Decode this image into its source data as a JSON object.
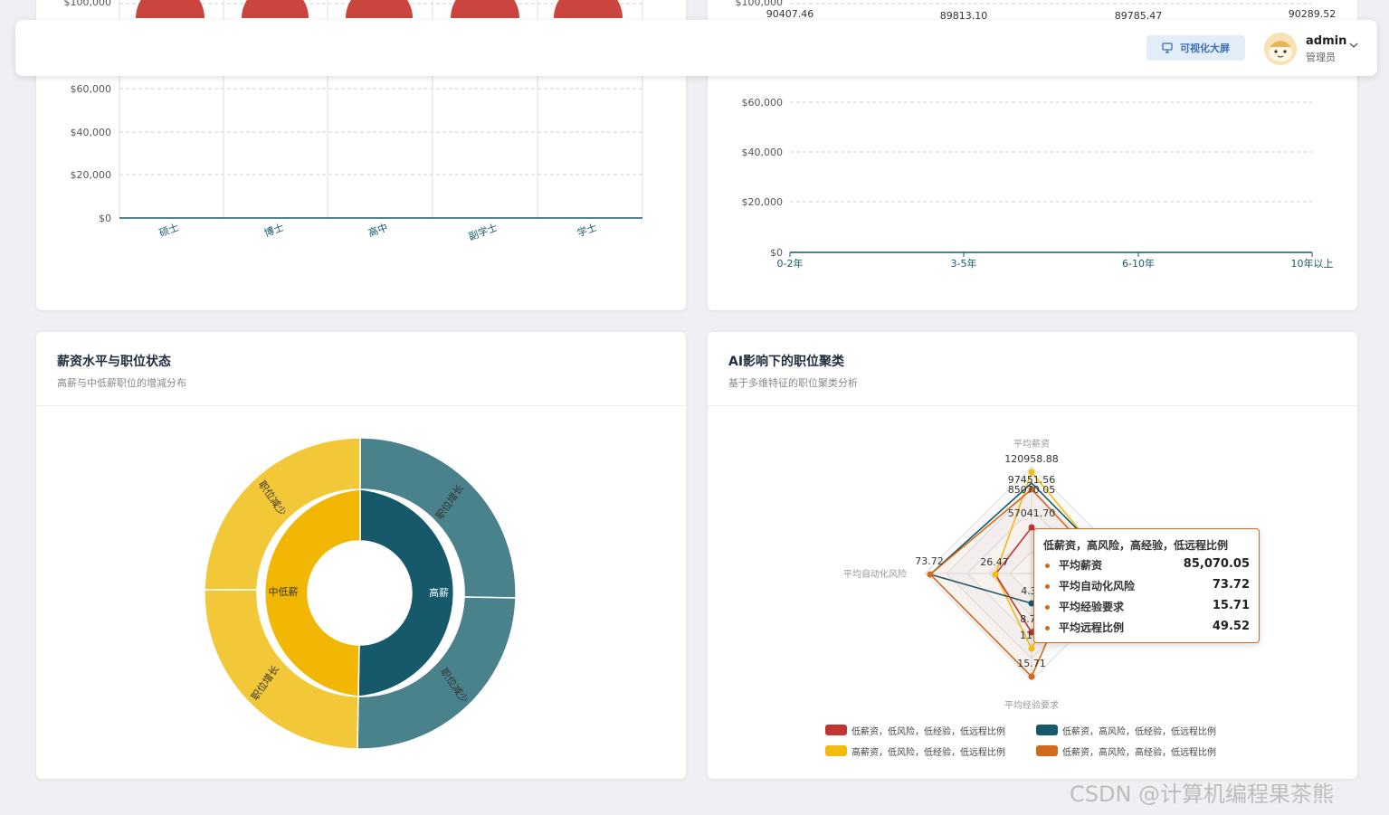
{
  "header": {
    "visual_button_label": "可视化大屏",
    "user_name": "admin",
    "user_role": "管理员"
  },
  "education_chart": {
    "y_ticks": [
      "$0",
      "$20,000",
      "$40,000",
      "$60,000",
      "$100,000"
    ],
    "categories": [
      "硕士",
      "博士",
      "高中",
      "副学士",
      "学士"
    ]
  },
  "experience_chart": {
    "y_ticks": [
      "$0",
      "$20,000",
      "$40,000",
      "$60,000",
      "$100,000"
    ],
    "categories": [
      "0-2年",
      "3-5年",
      "6-10年",
      "10年以上"
    ],
    "value_labels": [
      "90407.46",
      "89813.10",
      "89785.47",
      "90289.52"
    ]
  },
  "salary_panel": {
    "title": "薪资水平与职位状态",
    "subtitle": "高薪与中低薪职位的增减分布",
    "inner": [
      "中低薪",
      "高薪"
    ],
    "outer": [
      "职位减少",
      "职位增长",
      "职位增长",
      "职位减少"
    ]
  },
  "cluster_panel": {
    "title": "AI影响下的职位聚类",
    "subtitle": "基于多维特征的职位聚类分析",
    "axes": [
      "平均薪资",
      "平均自动化风险",
      "平均经验要求"
    ],
    "labels": [
      "120958.88",
      "97451.56",
      "85070.05",
      "57041.70",
      "73.72",
      "26.47",
      "4.3",
      "8.7",
      "11",
      "15.71"
    ],
    "legend": [
      {
        "name": "低薪资，低风险，低经验，低远程比例",
        "color": "#c23531"
      },
      {
        "name": "低薪资，高风险，低经验，低远程比例",
        "color": "#16596b"
      },
      {
        "name": "高薪资，低风险，低经验，低远程比例",
        "color": "#f2bd0f"
      },
      {
        "name": "低薪资，高风险，高经验，低远程比例",
        "color": "#d2691e"
      }
    ],
    "tooltip": {
      "title": "低薪资，高风险，高经验，低远程比例",
      "rows": [
        {
          "label": "平均薪资",
          "value": "85,070.05"
        },
        {
          "label": "平均自动化风险",
          "value": "73.72"
        },
        {
          "label": "平均经验要求",
          "value": "15.71"
        },
        {
          "label": "平均远程比例",
          "value": "49.52"
        }
      ]
    }
  },
  "watermark": "CSDN @计算机编程果茶熊",
  "colors": {
    "bar_red": "#c9453e",
    "teal_dark": "#16596b",
    "teal_light": "#4a828c",
    "yellow_dark": "#f2b705",
    "yellow_light": "#f3c838"
  }
}
